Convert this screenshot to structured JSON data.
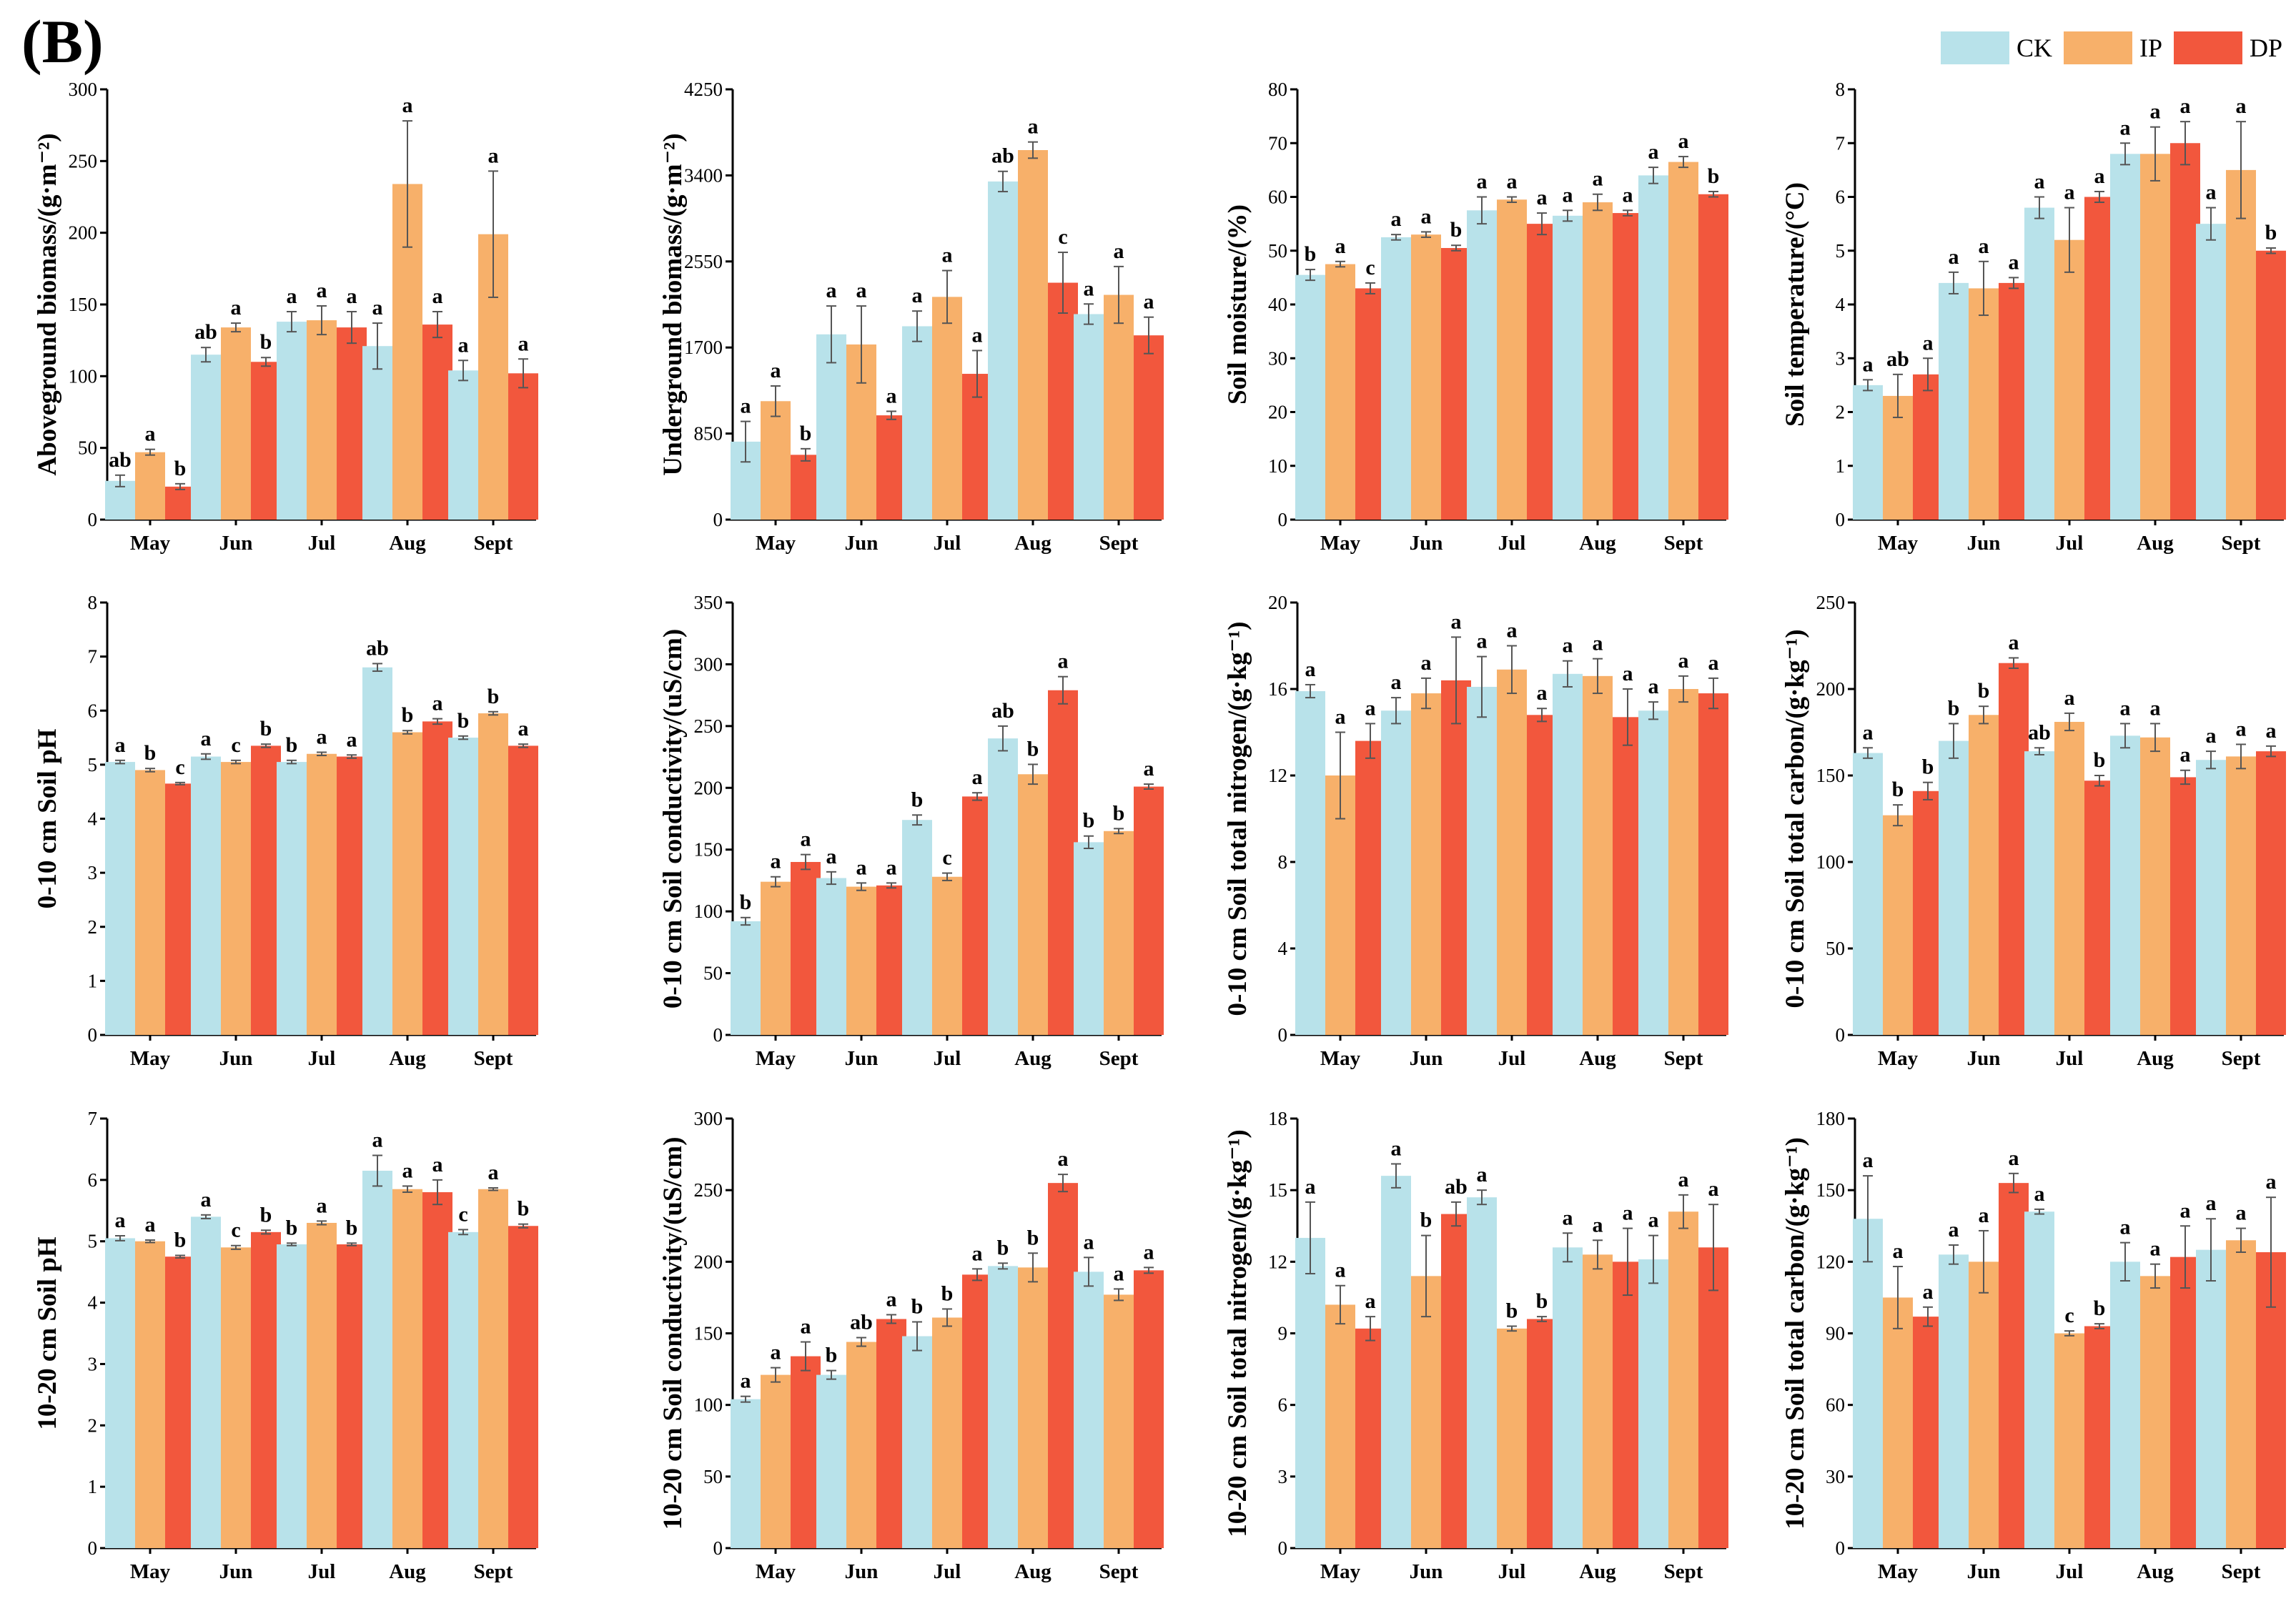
{
  "figure": {
    "panel_label": "(B)",
    "legend": [
      {
        "name": "CK",
        "color": "#b8e2ea"
      },
      {
        "name": "IP",
        "color": "#f7b06a"
      },
      {
        "name": "DP",
        "color": "#f2573d"
      }
    ]
  },
  "chart_data": [
    {
      "type": "bar",
      "ylabel": "Aboveground biomass/(g·m⁻²)",
      "categories": [
        "May",
        "Jun",
        "Jul",
        "Aug",
        "Sept"
      ],
      "ylim": [
        0,
        300
      ],
      "yticks": [
        0,
        50,
        100,
        150,
        200,
        250,
        300
      ],
      "series": [
        {
          "name": "CK",
          "values": [
            27,
            115,
            138,
            121,
            104
          ],
          "errors": [
            4,
            5,
            7,
            16,
            7
          ],
          "letters": [
            "ab",
            "ab",
            "a",
            "a",
            "a"
          ]
        },
        {
          "name": "IP",
          "values": [
            47,
            134,
            139,
            234,
            199
          ],
          "errors": [
            2,
            3,
            10,
            44,
            44
          ],
          "letters": [
            "a",
            "a",
            "a",
            "a",
            "a"
          ]
        },
        {
          "name": "DP",
          "values": [
            23,
            110,
            134,
            136,
            102
          ],
          "errors": [
            2,
            3,
            11,
            9,
            10
          ],
          "letters": [
            "b",
            "b",
            "a",
            "a",
            "a"
          ]
        }
      ]
    },
    {
      "type": "bar",
      "ylabel": "Underground biomass/(g·m⁻²)",
      "categories": [
        "May",
        "Jun",
        "Jul",
        "Aug",
        "Sept"
      ],
      "ylim": [
        0,
        4250
      ],
      "yticks": [
        0,
        850,
        1700,
        2550,
        3400,
        4250
      ],
      "series": [
        {
          "name": "CK",
          "values": [
            770,
            1830,
            1910,
            3340,
            2030
          ],
          "errors": [
            200,
            280,
            150,
            100,
            100
          ],
          "letters": [
            "a",
            "a",
            "a",
            "ab",
            "a"
          ]
        },
        {
          "name": "IP",
          "values": [
            1170,
            1730,
            2200,
            3650,
            2220
          ],
          "errors": [
            150,
            380,
            260,
            80,
            280
          ],
          "letters": [
            "a",
            "a",
            "a",
            "a",
            "a"
          ]
        },
        {
          "name": "DP",
          "values": [
            640,
            1030,
            1440,
            2340,
            1820
          ],
          "errors": [
            60,
            40,
            230,
            300,
            180
          ],
          "letters": [
            "b",
            "a",
            "a",
            "c",
            "a"
          ]
        }
      ]
    },
    {
      "type": "bar",
      "ylabel": "Soil moisture/(%)",
      "categories": [
        "May",
        "Jun",
        "Jul",
        "Aug",
        "Sept"
      ],
      "ylim": [
        0,
        80
      ],
      "yticks": [
        0,
        10,
        20,
        30,
        40,
        50,
        60,
        70,
        80
      ],
      "series": [
        {
          "name": "CK",
          "values": [
            45.5,
            52.5,
            57.5,
            56.5,
            64
          ],
          "errors": [
            1,
            0.5,
            2.5,
            1,
            1.5
          ],
          "letters": [
            "b",
            "a",
            "a",
            "a",
            "a"
          ]
        },
        {
          "name": "IP",
          "values": [
            47.5,
            53,
            59.5,
            59,
            66.5
          ],
          "errors": [
            0.5,
            0.5,
            0.5,
            1.5,
            1
          ],
          "letters": [
            "a",
            "a",
            "a",
            "a",
            "a"
          ]
        },
        {
          "name": "DP",
          "values": [
            43,
            50.5,
            55,
            57,
            60.5
          ],
          "errors": [
            1,
            0.5,
            2,
            0.5,
            0.5
          ],
          "letters": [
            "c",
            "b",
            "a",
            "a",
            "b"
          ]
        }
      ]
    },
    {
      "type": "bar",
      "ylabel": "Soil temperature/(°C)",
      "categories": [
        "May",
        "Jun",
        "Jul",
        "Aug",
        "Sept"
      ],
      "ylim": [
        0,
        8
      ],
      "yticks": [
        0,
        1,
        2,
        3,
        4,
        5,
        6,
        7,
        8
      ],
      "series": [
        {
          "name": "CK",
          "values": [
            2.5,
            4.4,
            5.8,
            6.8,
            5.5
          ],
          "errors": [
            0.1,
            0.2,
            0.2,
            0.2,
            0.3
          ],
          "letters": [
            "a",
            "a",
            "a",
            "a",
            "a"
          ]
        },
        {
          "name": "IP",
          "values": [
            2.3,
            4.3,
            5.2,
            6.8,
            6.5
          ],
          "errors": [
            0.4,
            0.5,
            0.6,
            0.5,
            0.9
          ],
          "letters": [
            "ab",
            "a",
            "a",
            "a",
            "a"
          ]
        },
        {
          "name": "DP",
          "values": [
            2.7,
            4.4,
            6.0,
            7.0,
            5.0
          ],
          "errors": [
            0.3,
            0.1,
            0.1,
            0.4,
            0.05
          ],
          "letters": [
            "a",
            "a",
            "a",
            "a",
            "b"
          ]
        }
      ]
    },
    {
      "type": "bar",
      "ylabel": "0-10 cm Soil pH",
      "categories": [
        "May",
        "Jun",
        "Jul",
        "Aug",
        "Sept"
      ],
      "ylim": [
        0,
        8
      ],
      "yticks": [
        0,
        1,
        2,
        3,
        4,
        5,
        6,
        7,
        8
      ],
      "series": [
        {
          "name": "CK",
          "values": [
            5.05,
            5.15,
            5.05,
            6.8,
            5.5
          ],
          "errors": [
            0.03,
            0.05,
            0.03,
            0.07,
            0.03
          ],
          "letters": [
            "a",
            "a",
            "b",
            "ab",
            "b"
          ]
        },
        {
          "name": "IP",
          "values": [
            4.9,
            5.05,
            5.2,
            5.6,
            5.95
          ],
          "errors": [
            0.03,
            0.03,
            0.03,
            0.03,
            0.03
          ],
          "letters": [
            "b",
            "c",
            "a",
            "b",
            "b"
          ]
        },
        {
          "name": "DP",
          "values": [
            4.65,
            5.35,
            5.15,
            5.8,
            5.35
          ],
          "errors": [
            0.02,
            0.03,
            0.03,
            0.05,
            0.03
          ],
          "letters": [
            "c",
            "b",
            "a",
            "a",
            "a"
          ]
        }
      ]
    },
    {
      "type": "bar",
      "ylabel": "0-10 cm Soil conductivity/(uS/cm)",
      "categories": [
        "May",
        "Jun",
        "Jul",
        "Aug",
        "Sept"
      ],
      "ylim": [
        0,
        350
      ],
      "yticks": [
        0,
        50,
        100,
        150,
        200,
        250,
        300,
        350
      ],
      "series": [
        {
          "name": "CK",
          "values": [
            92,
            127,
            174,
            240,
            156
          ],
          "errors": [
            3,
            5,
            4,
            10,
            5
          ],
          "letters": [
            "b",
            "a",
            "b",
            "ab",
            "b"
          ]
        },
        {
          "name": "IP",
          "values": [
            124,
            120,
            128,
            211,
            165
          ],
          "errors": [
            4,
            3,
            3,
            8,
            2
          ],
          "letters": [
            "a",
            "a",
            "c",
            "b",
            "b"
          ]
        },
        {
          "name": "DP",
          "values": [
            140,
            121,
            193,
            279,
            201
          ],
          "errors": [
            6,
            2,
            3,
            11,
            2
          ],
          "letters": [
            "a",
            "a",
            "a",
            "a",
            "a"
          ]
        }
      ]
    },
    {
      "type": "bar",
      "ylabel": "0-10 cm Soil total nitrogen/(g·kg⁻¹)",
      "categories": [
        "May",
        "Jun",
        "Jul",
        "Aug",
        "Sept"
      ],
      "ylim": [
        0,
        20
      ],
      "yticks": [
        0,
        4,
        8,
        12,
        16,
        20
      ],
      "series": [
        {
          "name": "CK",
          "values": [
            15.9,
            15.0,
            16.1,
            16.7,
            15.0
          ],
          "errors": [
            0.3,
            0.6,
            1.4,
            0.6,
            0.4
          ],
          "letters": [
            "a",
            "a",
            "a",
            "a",
            "a"
          ]
        },
        {
          "name": "IP",
          "values": [
            12.0,
            15.8,
            16.9,
            16.6,
            16.0
          ],
          "errors": [
            2.0,
            0.7,
            1.1,
            0.8,
            0.6
          ],
          "letters": [
            "a",
            "a",
            "a",
            "a",
            "a"
          ]
        },
        {
          "name": "DP",
          "values": [
            13.6,
            16.4,
            14.8,
            14.7,
            15.8
          ],
          "errors": [
            0.8,
            2.0,
            0.3,
            1.3,
            0.7
          ],
          "letters": [
            "a",
            "a",
            "a",
            "a",
            "a"
          ]
        }
      ]
    },
    {
      "type": "bar",
      "ylabel": "0-10 cm Soil total carbon/(g·kg⁻¹)",
      "categories": [
        "May",
        "Jun",
        "Jul",
        "Aug",
        "Sept"
      ],
      "ylim": [
        0,
        250
      ],
      "yticks": [
        0,
        50,
        100,
        150,
        200,
        250
      ],
      "series": [
        {
          "name": "CK",
          "values": [
            163,
            170,
            164,
            173,
            159
          ],
          "errors": [
            3,
            10,
            2,
            7,
            5
          ],
          "letters": [
            "a",
            "b",
            "ab",
            "a",
            "a"
          ]
        },
        {
          "name": "IP",
          "values": [
            127,
            185,
            181,
            172,
            161
          ],
          "errors": [
            6,
            5,
            5,
            8,
            7
          ],
          "letters": [
            "b",
            "b",
            "a",
            "a",
            "a"
          ]
        },
        {
          "name": "DP",
          "values": [
            141,
            215,
            147,
            149,
            164
          ],
          "errors": [
            5,
            3,
            3,
            4,
            3
          ],
          "letters": [
            "b",
            "a",
            "b",
            "a",
            "a"
          ]
        }
      ]
    },
    {
      "type": "bar",
      "ylabel": "10-20 cm Soil pH",
      "categories": [
        "May",
        "Jun",
        "Jul",
        "Aug",
        "Sept"
      ],
      "ylim": [
        0,
        7
      ],
      "yticks": [
        0,
        1,
        2,
        3,
        4,
        5,
        6,
        7
      ],
      "series": [
        {
          "name": "CK",
          "values": [
            5.05,
            5.4,
            4.95,
            6.15,
            5.15
          ],
          "errors": [
            0.04,
            0.03,
            0.02,
            0.25,
            0.04
          ],
          "letters": [
            "a",
            "a",
            "b",
            "a",
            "c"
          ]
        },
        {
          "name": "IP",
          "values": [
            5.0,
            4.9,
            5.3,
            5.85,
            5.85
          ],
          "errors": [
            0.02,
            0.03,
            0.03,
            0.05,
            0.02
          ],
          "letters": [
            "a",
            "c",
            "a",
            "a",
            "a"
          ]
        },
        {
          "name": "DP",
          "values": [
            4.75,
            5.15,
            4.95,
            5.8,
            5.25
          ],
          "errors": [
            0.02,
            0.03,
            0.02,
            0.2,
            0.03
          ],
          "letters": [
            "b",
            "b",
            "b",
            "a",
            "b"
          ]
        }
      ]
    },
    {
      "type": "bar",
      "ylabel": "10-20 cm Soil conductivity/(uS/cm)",
      "categories": [
        "May",
        "Jun",
        "Jul",
        "Aug",
        "Sept"
      ],
      "ylim": [
        0,
        300
      ],
      "yticks": [
        0,
        50,
        100,
        150,
        200,
        250,
        300
      ],
      "series": [
        {
          "name": "CK",
          "values": [
            104,
            121,
            148,
            197,
            193
          ],
          "errors": [
            2,
            3,
            10,
            2,
            10
          ],
          "letters": [
            "a",
            "b",
            "b",
            "b",
            "a"
          ]
        },
        {
          "name": "IP",
          "values": [
            121,
            144,
            161,
            196,
            177
          ],
          "errors": [
            5,
            3,
            6,
            10,
            4
          ],
          "letters": [
            "a",
            "ab",
            "b",
            "b",
            "a"
          ]
        },
        {
          "name": "DP",
          "values": [
            134,
            160,
            191,
            255,
            194
          ],
          "errors": [
            10,
            3,
            4,
            6,
            2
          ],
          "letters": [
            "a",
            "a",
            "a",
            "a",
            "a"
          ]
        }
      ]
    },
    {
      "type": "bar",
      "ylabel": "10-20 cm Soil total nitrogen/(g·kg⁻¹)",
      "categories": [
        "May",
        "Jun",
        "Jul",
        "Aug",
        "Sept"
      ],
      "ylim": [
        0,
        18
      ],
      "yticks": [
        0,
        3,
        6,
        9,
        12,
        15,
        18
      ],
      "series": [
        {
          "name": "CK",
          "values": [
            13.0,
            15.6,
            14.7,
            12.6,
            12.1
          ],
          "errors": [
            1.5,
            0.5,
            0.3,
            0.6,
            1.0
          ],
          "letters": [
            "a",
            "a",
            "a",
            "a",
            "a"
          ]
        },
        {
          "name": "IP",
          "values": [
            10.2,
            11.4,
            9.2,
            12.3,
            14.1
          ],
          "errors": [
            0.8,
            1.7,
            0.1,
            0.6,
            0.7
          ],
          "letters": [
            "a",
            "b",
            "b",
            "a",
            "a"
          ]
        },
        {
          "name": "DP",
          "values": [
            9.2,
            14.0,
            9.6,
            12.0,
            12.6
          ],
          "errors": [
            0.5,
            0.5,
            0.1,
            1.4,
            1.8
          ],
          "letters": [
            "a",
            "ab",
            "b",
            "a",
            "a"
          ]
        }
      ]
    },
    {
      "type": "bar",
      "ylabel": "10-20 cm Soil total carbon/(g·kg⁻¹)",
      "categories": [
        "May",
        "Jun",
        "Jul",
        "Aug",
        "Sept"
      ],
      "ylim": [
        0,
        180
      ],
      "yticks": [
        0,
        30,
        60,
        90,
        120,
        150,
        180
      ],
      "series": [
        {
          "name": "CK",
          "values": [
            138,
            123,
            141,
            120,
            125
          ],
          "errors": [
            18,
            4,
            1,
            8,
            13
          ],
          "letters": [
            "a",
            "a",
            "a",
            "a",
            "a"
          ]
        },
        {
          "name": "IP",
          "values": [
            105,
            120,
            90,
            114,
            129
          ],
          "errors": [
            13,
            13,
            1,
            5,
            5
          ],
          "letters": [
            "a",
            "a",
            "c",
            "a",
            "a"
          ]
        },
        {
          "name": "DP",
          "values": [
            97,
            153,
            93,
            122,
            124
          ],
          "errors": [
            4,
            4,
            1,
            13,
            23
          ],
          "letters": [
            "a",
            "a",
            "b",
            "a",
            "a"
          ]
        }
      ]
    }
  ]
}
